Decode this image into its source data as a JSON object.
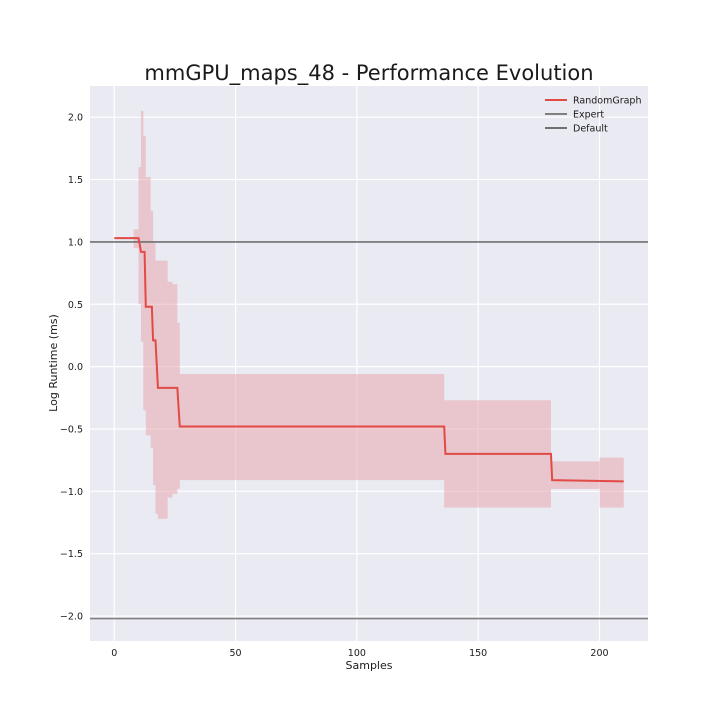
{
  "chart_data": {
    "type": "line",
    "title": "mmGPU_maps_48 - Performance Evolution",
    "xlabel": "Samples",
    "ylabel": "Log Runtime (ms)",
    "xlim": [
      -10,
      220
    ],
    "ylim": [
      -2.2,
      2.25
    ],
    "xticks": [
      0,
      50,
      100,
      150,
      200
    ],
    "xtick_labels": [
      "0",
      "50",
      "100",
      "150",
      "200"
    ],
    "yticks": [
      -2.0,
      -1.5,
      -1.0,
      -0.5,
      0.0,
      0.5,
      1.0,
      1.5,
      2.0
    ],
    "ytick_labels": [
      "−2.0",
      "−1.5",
      "−1.0",
      "−0.5",
      "0.0",
      "0.5",
      "1.0",
      "1.5",
      "2.0"
    ],
    "grid": true,
    "legend_position": "top-right",
    "legend": [
      {
        "label": "RandomGraph",
        "color": "#e24a46"
      },
      {
        "label": "Expert",
        "color": "#808080"
      },
      {
        "label": "Default",
        "color": "#707070"
      }
    ],
    "series": [
      {
        "name": "RandomGraph",
        "color": "#e24a46",
        "band_color": "#e8a0a8",
        "band_opacity": 0.5,
        "steps": [
          {
            "x": 0,
            "y": 1.03
          },
          {
            "x": 10,
            "y": 1.03
          },
          {
            "x": 10.5,
            "y": 0.98
          },
          {
            "x": 11,
            "y": 0.92
          },
          {
            "x": 12.5,
            "y": 0.92
          },
          {
            "x": 13,
            "y": 0.48
          },
          {
            "x": 15.5,
            "y": 0.48
          },
          {
            "x": 16,
            "y": 0.21
          },
          {
            "x": 17,
            "y": 0.21
          },
          {
            "x": 18,
            "y": -0.17
          },
          {
            "x": 26,
            "y": -0.17
          },
          {
            "x": 27,
            "y": -0.48
          },
          {
            "x": 136,
            "y": -0.48
          },
          {
            "x": 136.5,
            "y": -0.7
          },
          {
            "x": 180,
            "y": -0.7
          },
          {
            "x": 180.5,
            "y": -0.91
          },
          {
            "x": 210,
            "y": -0.92
          }
        ],
        "band": [
          {
            "x0": 8,
            "x1": 10,
            "lo": 0.95,
            "hi": 1.1
          },
          {
            "x0": 10,
            "x1": 11,
            "lo": 0.5,
            "hi": 1.6
          },
          {
            "x0": 11,
            "x1": 12,
            "lo": 0.2,
            "hi": 2.05
          },
          {
            "x0": 12,
            "x1": 13,
            "lo": -0.35,
            "hi": 1.85
          },
          {
            "x0": 13,
            "x1": 15,
            "lo": -0.55,
            "hi": 1.52
          },
          {
            "x0": 15,
            "x1": 16,
            "lo": -0.65,
            "hi": 1.25
          },
          {
            "x0": 16,
            "x1": 17,
            "lo": -0.95,
            "hi": 1.0
          },
          {
            "x0": 17,
            "x1": 18,
            "lo": -1.18,
            "hi": 0.85
          },
          {
            "x0": 18,
            "x1": 22,
            "lo": -1.22,
            "hi": 0.85
          },
          {
            "x0": 22,
            "x1": 24,
            "lo": -1.05,
            "hi": 0.68
          },
          {
            "x0": 24,
            "x1": 26,
            "lo": -1.02,
            "hi": 0.66
          },
          {
            "x0": 26,
            "x1": 27,
            "lo": -0.98,
            "hi": 0.35
          },
          {
            "x0": 27,
            "x1": 136,
            "lo": -0.91,
            "hi": -0.06
          },
          {
            "x0": 136,
            "x1": 180,
            "lo": -1.13,
            "hi": -0.27
          },
          {
            "x0": 180,
            "x1": 200,
            "lo": -0.98,
            "hi": -0.76
          },
          {
            "x0": 200,
            "x1": 210,
            "lo": -1.13,
            "hi": -0.73
          }
        ]
      },
      {
        "name": "Expert",
        "color": "#808080",
        "y": -2.02
      },
      {
        "name": "Default",
        "color": "#707070",
        "y": 1.0
      }
    ]
  }
}
